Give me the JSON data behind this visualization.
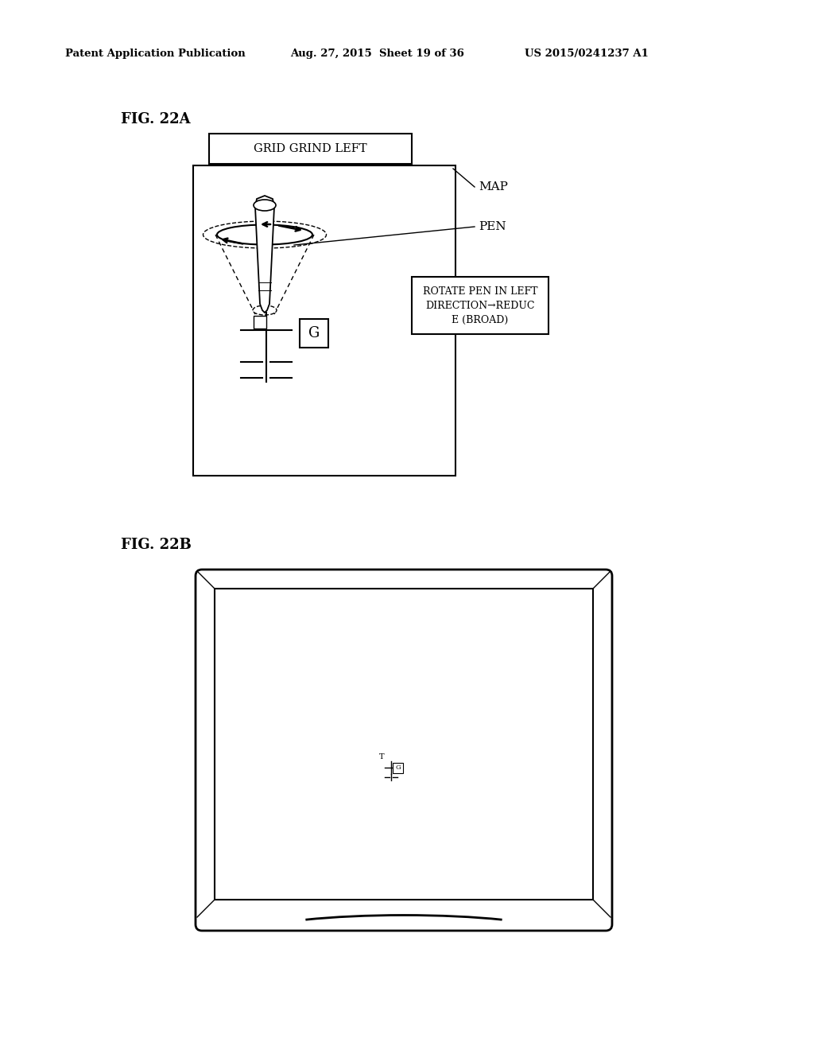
{
  "bg_color": "#ffffff",
  "header_left": "Patent Application Publication",
  "header_mid": "Aug. 27, 2015  Sheet 19 of 36",
  "header_right": "US 2015/0241237 A1",
  "fig_a_label": "FIG. 22A",
  "fig_b_label": "FIG. 22B",
  "grid_grind_label": "GRID GRIND LEFT",
  "map_label": "MAP",
  "pen_label": "PEN",
  "rotate_label": "ROTATE PEN IN LEFT\nDIRECTION→REDUC\nE (BROAD)",
  "g_label": "G",
  "t_label": "T"
}
